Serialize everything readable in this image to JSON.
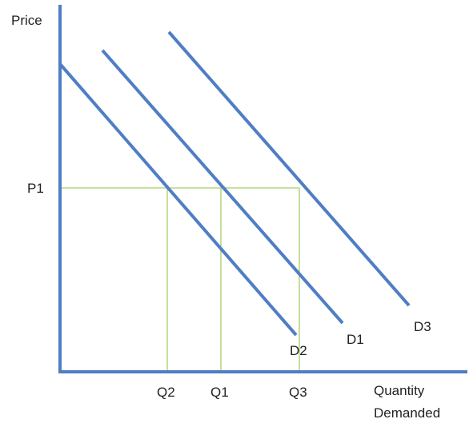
{
  "diagram": {
    "y_axis_label": "Price",
    "x_axis_label_line1": "Quantity",
    "x_axis_label_line2": "Demanded",
    "price_label": "P1",
    "quantity_labels": {
      "q1": "Q1",
      "q2": "Q2",
      "q3": "Q3"
    },
    "curve_labels": {
      "d1": "D1",
      "d2": "D2",
      "d3": "D3"
    },
    "colors": {
      "axes": "#4f7ec4",
      "demand_curves": "#4f7ec4",
      "guide_lines": "#a6cf63",
      "text": "#222222"
    }
  }
}
